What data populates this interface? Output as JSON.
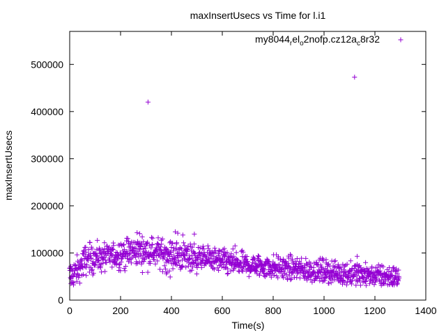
{
  "chart_data": {
    "type": "scatter",
    "title": "maxInsertUsecs vs Time for l.i1",
    "xlabel": "Time(s)",
    "ylabel": "maxInsertUsecs",
    "xlim": [
      0,
      1400
    ],
    "ylim": [
      0,
      570000
    ],
    "x_ticks": [
      "0",
      "200",
      "400",
      "600",
      "800",
      "1000",
      "1200",
      "1400"
    ],
    "y_ticks": [
      "0",
      "100000",
      "200000",
      "300000",
      "400000",
      "500000"
    ],
    "legend_position": "top-right",
    "marker": "plus",
    "color": "#9400d3",
    "series": [
      {
        "name_parts": [
          {
            "text": "my8044",
            "sub": false
          },
          {
            "text": "r",
            "sub": true
          },
          {
            "text": "el",
            "sub": false
          },
          {
            "text": "o",
            "sub": true
          },
          {
            "text": "2nofp.cz12a",
            "sub": false
          },
          {
            "text": "c",
            "sub": true
          },
          {
            "text": "8r32",
            "sub": false
          }
        ],
        "trend": [
          [
            0,
            52000
          ],
          [
            30,
            62000
          ],
          [
            60,
            85000
          ],
          [
            100,
            90000
          ],
          [
            150,
            92000
          ],
          [
            200,
            97000
          ],
          [
            250,
            103000
          ],
          [
            300,
            103000
          ],
          [
            350,
            100000
          ],
          [
            400,
            95000
          ],
          [
            450,
            93000
          ],
          [
            500,
            90000
          ],
          [
            550,
            88000
          ],
          [
            600,
            82000
          ],
          [
            650,
            77000
          ],
          [
            700,
            74000
          ],
          [
            750,
            72000
          ],
          [
            800,
            70000
          ],
          [
            850,
            68000
          ],
          [
            900,
            66000
          ],
          [
            950,
            63000
          ],
          [
            1000,
            61000
          ],
          [
            1050,
            58000
          ],
          [
            1100,
            56000
          ],
          [
            1150,
            54000
          ],
          [
            1200,
            52000
          ],
          [
            1250,
            50000
          ],
          [
            1295,
            48000
          ]
        ],
        "x_range": [
          0,
          1295
        ],
        "n_points": 1300,
        "jitter": 15000,
        "outliers": [
          [
            308,
            420000
          ],
          [
            1120,
            473000
          ],
          [
            265,
            143000
          ],
          [
            275,
            141000
          ],
          [
            415,
            145000
          ],
          [
            425,
            142000
          ],
          [
            445,
            138000
          ],
          [
            490,
            140000
          ],
          [
            380,
            56000
          ],
          [
            395,
            49000
          ],
          [
            5,
            35000
          ],
          [
            12,
            38000
          ],
          [
            650,
            115000
          ],
          [
            1130,
            93000
          ]
        ]
      }
    ]
  }
}
